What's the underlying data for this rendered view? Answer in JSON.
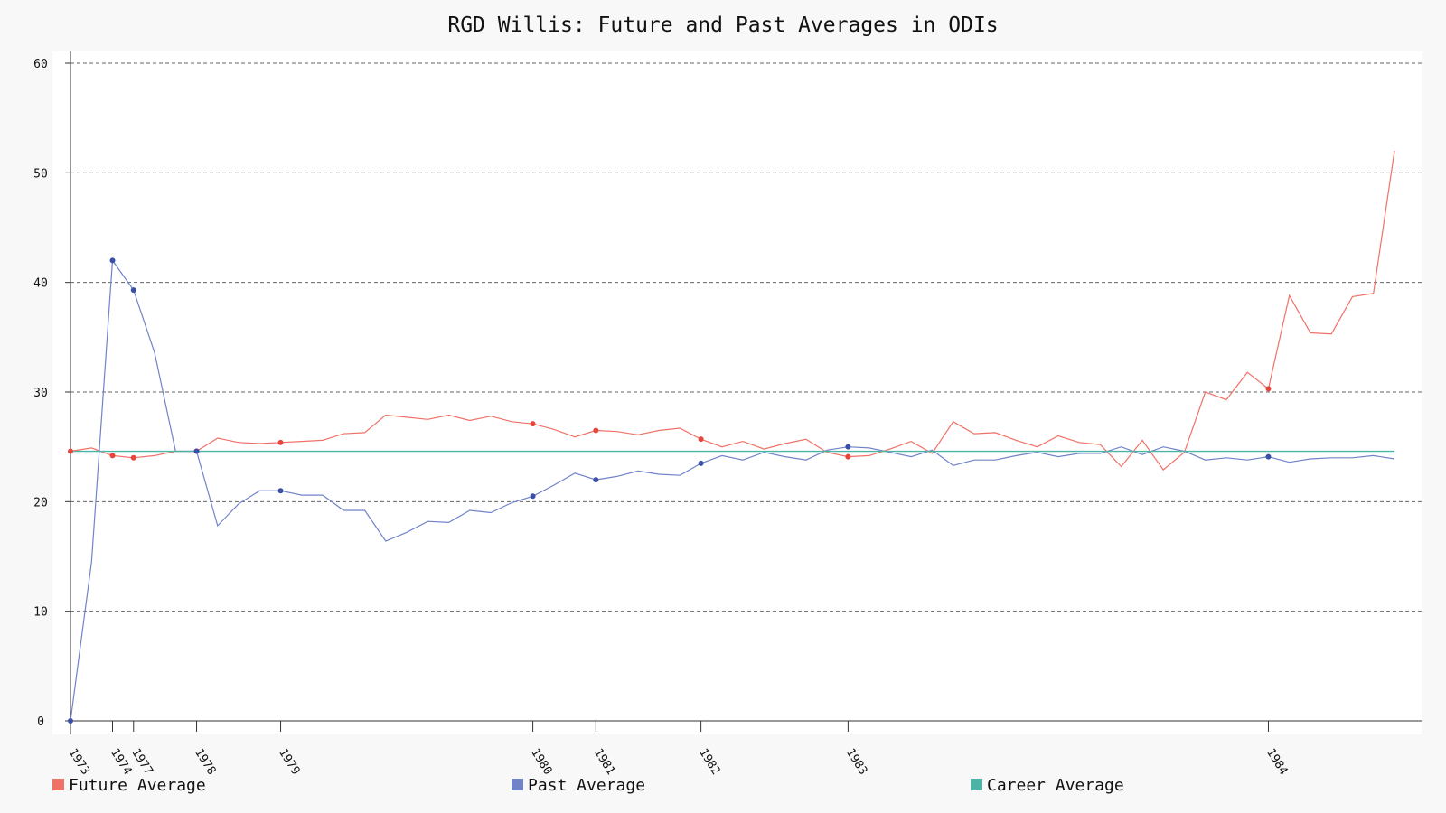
{
  "chart_data": {
    "type": "line",
    "title": "RGD Willis: Future and Past Averages in ODIs",
    "xlabel": "",
    "ylabel": "",
    "ylim": [
      0,
      60
    ],
    "yticks": [
      0,
      10,
      20,
      30,
      40,
      50,
      60
    ],
    "grid": true,
    "legend_position": "bottom",
    "x_tick_labels": [
      {
        "index": 0,
        "label": "1973"
      },
      {
        "index": 2,
        "label": "1974"
      },
      {
        "index": 3,
        "label": "1977"
      },
      {
        "index": 6,
        "label": "1978"
      },
      {
        "index": 10,
        "label": "1979"
      },
      {
        "index": 22,
        "label": "1980"
      },
      {
        "index": 25,
        "label": "1981"
      },
      {
        "index": 30,
        "label": "1982"
      },
      {
        "index": 37,
        "label": "1983"
      },
      {
        "index": 57,
        "label": "1984"
      }
    ],
    "marker_indices": [
      0,
      2,
      3,
      6,
      10,
      22,
      25,
      30,
      37,
      57
    ],
    "series": [
      {
        "name": "Future Average",
        "color": "#f07167",
        "marker_color": "#e8453c",
        "values": [
          24.6,
          24.9,
          24.2,
          24.0,
          24.2,
          24.6,
          24.6,
          25.8,
          25.4,
          25.3,
          25.4,
          25.5,
          25.6,
          26.2,
          26.3,
          27.9,
          27.7,
          27.5,
          27.9,
          27.4,
          27.8,
          27.3,
          27.1,
          26.6,
          25.9,
          26.5,
          26.4,
          26.1,
          26.5,
          26.7,
          25.7,
          25.0,
          25.5,
          24.8,
          25.3,
          25.7,
          24.5,
          24.1,
          24.2,
          24.8,
          25.5,
          24.4,
          27.3,
          26.2,
          26.3,
          25.6,
          25.0,
          26.0,
          25.4,
          25.2,
          23.2,
          25.6,
          22.9,
          24.5,
          30.0,
          29.3,
          31.8,
          30.3,
          38.8,
          35.4,
          35.3,
          38.7,
          39.0,
          52.0
        ]
      },
      {
        "name": "Past Average",
        "color": "#7083c9",
        "marker_color": "#3a4fa8",
        "values": [
          0.0,
          14.5,
          42.0,
          39.3,
          33.6,
          24.6,
          24.6,
          17.8,
          19.8,
          21.0,
          21.0,
          20.6,
          20.6,
          19.2,
          19.2,
          16.4,
          17.2,
          18.2,
          18.1,
          19.2,
          19.0,
          19.9,
          20.5,
          21.5,
          22.6,
          22.0,
          22.3,
          22.8,
          22.5,
          22.4,
          23.5,
          24.2,
          23.8,
          24.5,
          24.1,
          23.8,
          24.7,
          25.0,
          24.9,
          24.5,
          24.1,
          24.7,
          23.3,
          23.8,
          23.8,
          24.2,
          24.5,
          24.1,
          24.4,
          24.4,
          25.0,
          24.3,
          25.0,
          24.6,
          23.8,
          24.0,
          23.8,
          24.1,
          23.6,
          23.9,
          24.0,
          24.0,
          24.2,
          23.9
        ]
      },
      {
        "name": "Career Average",
        "color": "#4db3a4",
        "constant": 24.6
      }
    ]
  }
}
